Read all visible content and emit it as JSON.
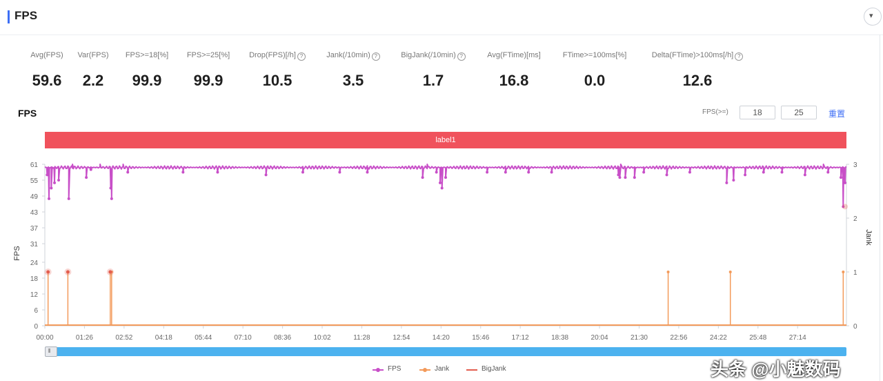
{
  "page": {
    "title": "FPS",
    "collapse_glyph": "▾",
    "collapse_icon": "caret-down-icon",
    "info_glyph": "?"
  },
  "metrics": [
    {
      "label": "Avg(FPS)",
      "value": "59.6",
      "info": false
    },
    {
      "label": "Var(FPS)",
      "value": "2.2",
      "info": false
    },
    {
      "label": "FPS>=18[%]",
      "value": "99.9",
      "info": false
    },
    {
      "label": "FPS>=25[%]",
      "value": "99.9",
      "info": false
    },
    {
      "label": "Drop(FPS)[/h]",
      "value": "10.5",
      "info": true
    },
    {
      "label": "Jank(/10min)",
      "value": "3.5",
      "info": true
    },
    {
      "label": "BigJank(/10min)",
      "value": "1.7",
      "info": true
    },
    {
      "label": "Avg(FTime)[ms]",
      "value": "16.8",
      "info": false
    },
    {
      "label": "FTime>=100ms[%]",
      "value": "0.0",
      "info": false
    },
    {
      "label": "Delta(FTime)>100ms[/h]",
      "value": "12.6",
      "info": true
    }
  ],
  "chart_header": {
    "title": "FPS",
    "threshold_label": "FPS(>=)",
    "threshold_low": "18",
    "threshold_high": "25",
    "reset_label": "重置"
  },
  "label_band": {
    "text": "label1"
  },
  "slider": {
    "handle_glyph": "⦀"
  },
  "legend": [
    {
      "name": "FPS",
      "color": "#c84fc8"
    },
    {
      "name": "Jank",
      "color": "#f39a5a"
    },
    {
      "name": "BigJank",
      "color": "#e35d4f"
    }
  ],
  "watermark": "头条 @小魅数码",
  "colors": {
    "accent": "#3d6ef5",
    "label_band": "#f0525c",
    "fps_line": "#c84fc8",
    "jank_line": "#f39a5a",
    "bigjank_line": "#e35d4f",
    "slider": "#4cb2ef"
  },
  "chart_data": {
    "type": "line",
    "xlabel": "",
    "ylabel": "FPS",
    "y2label": "Jank",
    "x_range_sec": [
      0,
      1740
    ],
    "x_ticks": [
      "00:00",
      "01:26",
      "02:52",
      "04:18",
      "05:44",
      "07:10",
      "08:36",
      "10:02",
      "11:28",
      "12:54",
      "14:20",
      "15:46",
      "17:12",
      "18:38",
      "20:04",
      "21:30",
      "22:56",
      "24:22",
      "25:48",
      "27:14"
    ],
    "x_tick_seconds": [
      0,
      86,
      172,
      258,
      344,
      430,
      516,
      602,
      688,
      774,
      860,
      946,
      1032,
      1118,
      1204,
      1290,
      1376,
      1462,
      1548,
      1634
    ],
    "y_ticks": [
      0,
      6,
      12,
      18,
      24,
      31,
      37,
      43,
      49,
      55,
      61
    ],
    "ylim": [
      0,
      61
    ],
    "y2_ticks": [
      0,
      1,
      2,
      3
    ],
    "y2lim": [
      0,
      3
    ],
    "series": [
      {
        "name": "FPS",
        "baseline": 59.8,
        "dips": [
          [
            5,
            57
          ],
          [
            9,
            48
          ],
          [
            14,
            52
          ],
          [
            21,
            54
          ],
          [
            30,
            55
          ],
          [
            52,
            48
          ],
          [
            90,
            56
          ],
          [
            100,
            59
          ],
          [
            143,
            52
          ],
          [
            145,
            48
          ],
          [
            180,
            58
          ],
          [
            300,
            58
          ],
          [
            375,
            58
          ],
          [
            480,
            57
          ],
          [
            560,
            58
          ],
          [
            640,
            58
          ],
          [
            700,
            58
          ],
          [
            820,
            56
          ],
          [
            850,
            58
          ],
          [
            858,
            54
          ],
          [
            862,
            52
          ],
          [
            870,
            56
          ],
          [
            960,
            58
          ],
          [
            1000,
            58
          ],
          [
            1050,
            58
          ],
          [
            1100,
            58
          ],
          [
            1245,
            57
          ],
          [
            1248,
            56
          ],
          [
            1260,
            56
          ],
          [
            1280,
            56
          ],
          [
            1300,
            58
          ],
          [
            1350,
            57
          ],
          [
            1400,
            58
          ],
          [
            1480,
            54
          ],
          [
            1495,
            55
          ],
          [
            1520,
            57
          ],
          [
            1560,
            58
          ],
          [
            1600,
            58
          ],
          [
            1650,
            57
          ],
          [
            1700,
            58
          ],
          [
            1728,
            56
          ],
          [
            1733,
            45
          ],
          [
            1737,
            54
          ]
        ],
        "spikes": [
          [
            60,
            61
          ],
          [
            120,
            61
          ],
          [
            170,
            61
          ],
          [
            830,
            61
          ],
          [
            1250,
            61
          ],
          [
            1690,
            61
          ]
        ]
      },
      {
        "name": "Jank",
        "events_sec": [
          7,
          50,
          142,
          145,
          1353,
          1488,
          1733
        ],
        "values": [
          1,
          1,
          1,
          1,
          1,
          1,
          1
        ]
      },
      {
        "name": "BigJank",
        "events_sec": [
          7,
          50,
          142
        ],
        "values": [
          1,
          1,
          1
        ]
      }
    ]
  }
}
